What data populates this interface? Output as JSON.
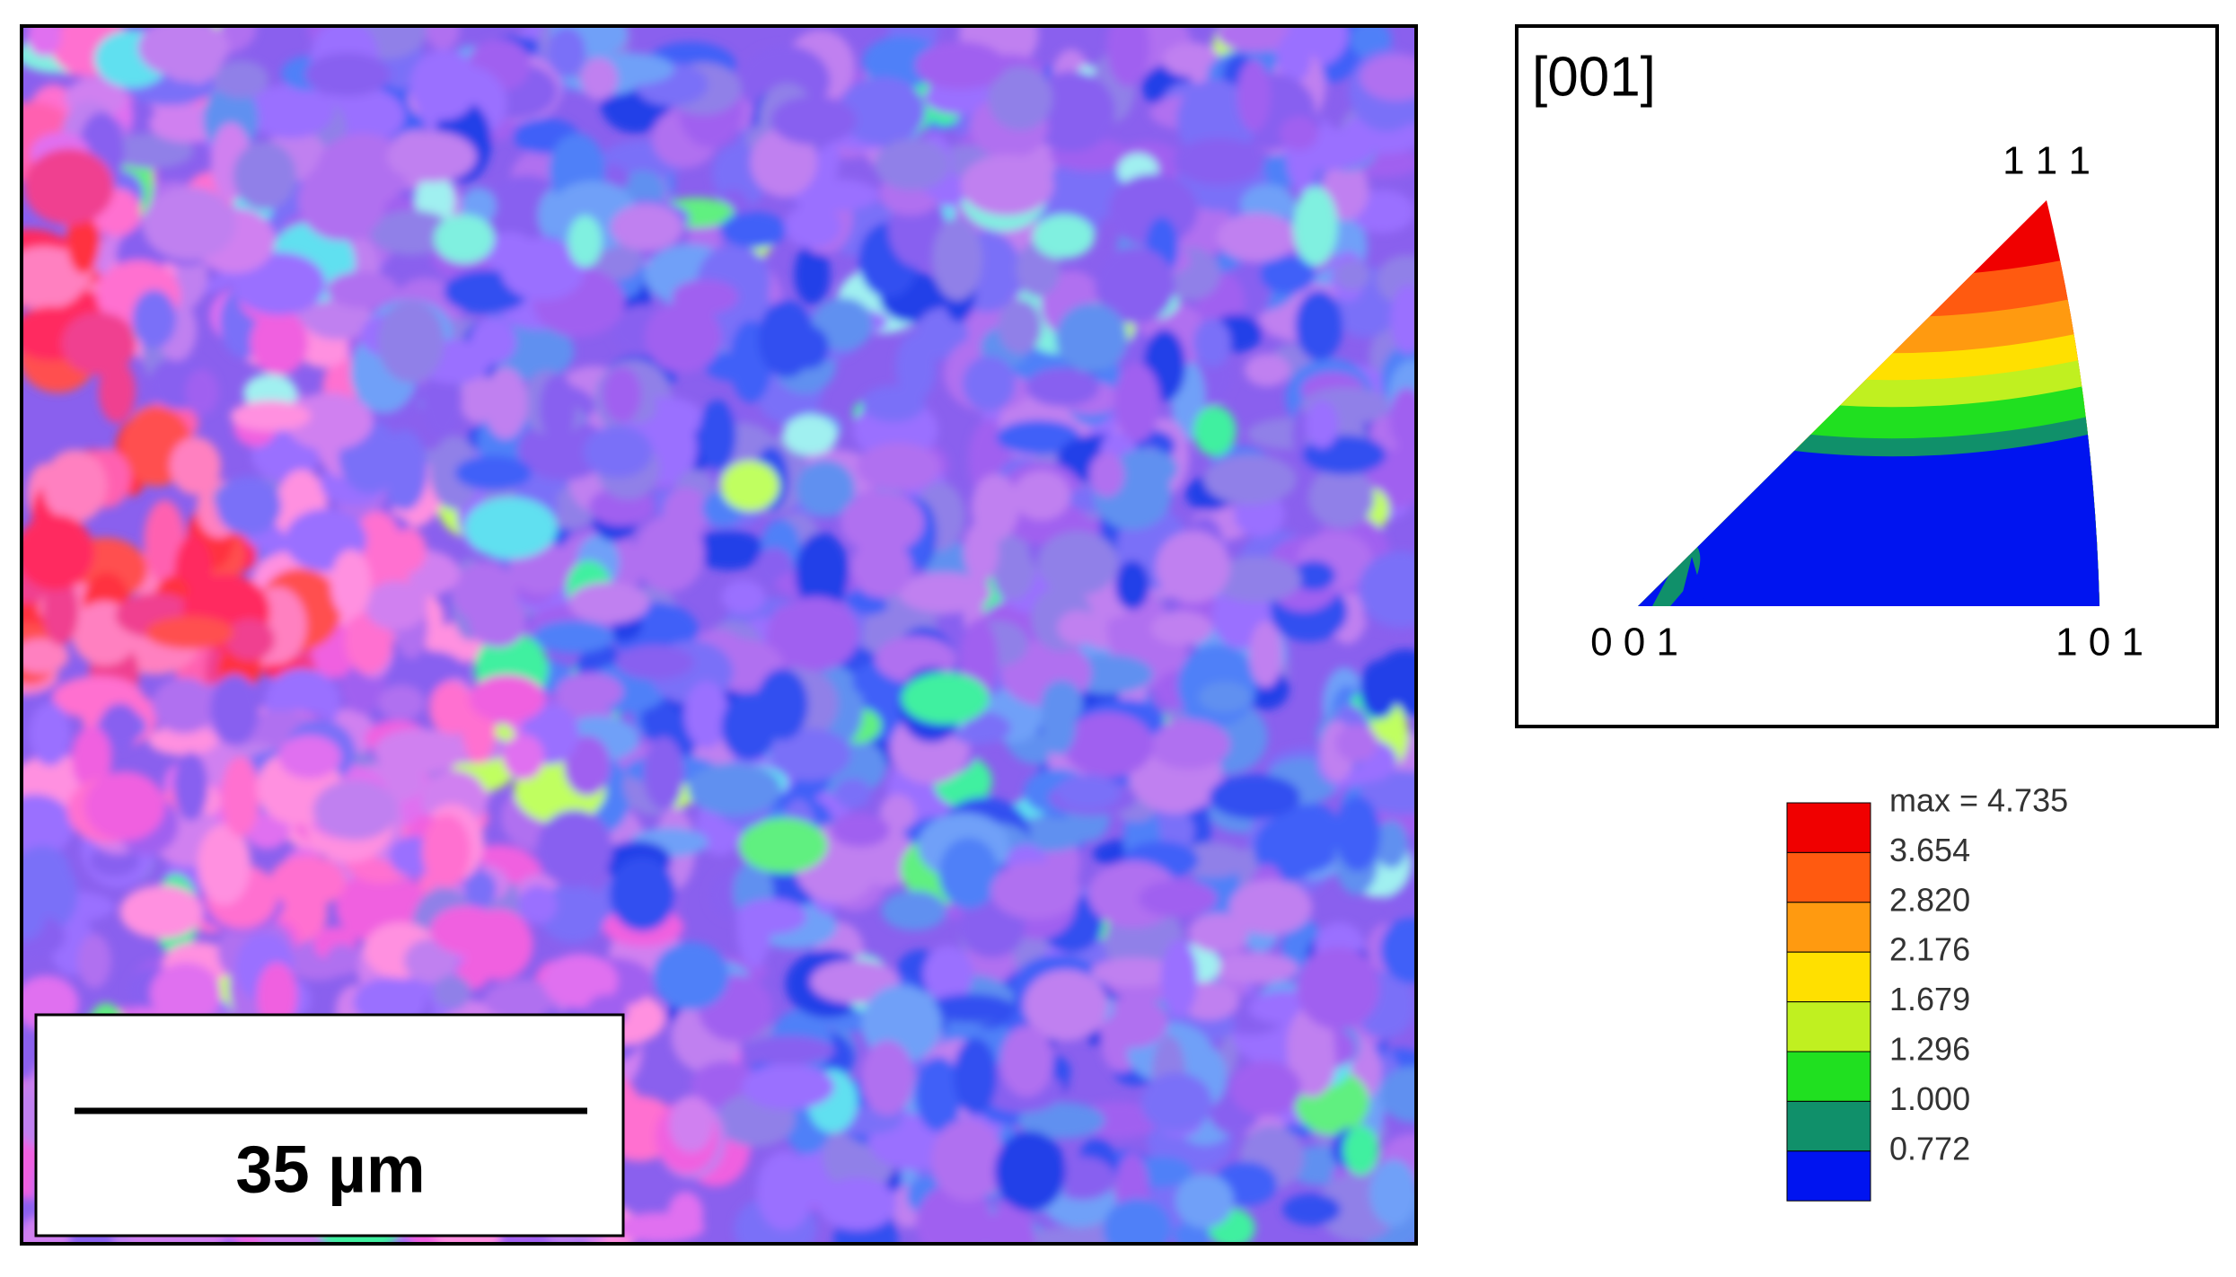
{
  "scale_bar": {
    "label": "35 µm"
  },
  "pole_figure": {
    "direction": "[001]",
    "corners": {
      "top": "1 1 1",
      "left": "0 0 1",
      "right": "1 0 1"
    }
  },
  "legend": {
    "max_label": "max = 4.735",
    "levels": [
      "3.654",
      "2.820",
      "2.176",
      "1.679",
      "1.296",
      "1.000",
      "0.772"
    ],
    "colors": [
      "#f00000",
      "#ff5a10",
      "#ff9a10",
      "#ffe000",
      "#c0f020",
      "#20e020",
      "#10906a",
      "#0014f0"
    ]
  }
}
